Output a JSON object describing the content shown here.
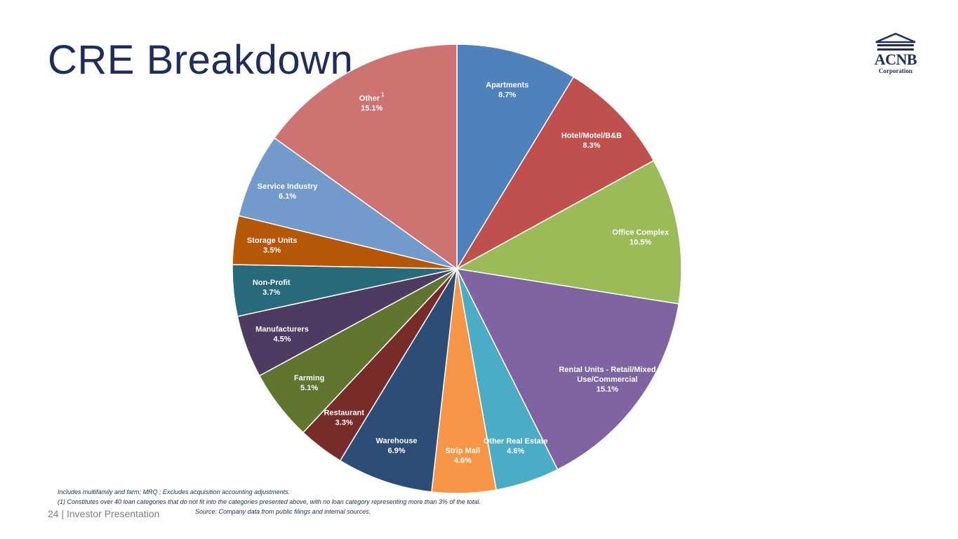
{
  "slide": {
    "title": "CRE Breakdown",
    "footer_page": "24",
    "footer_separator": "|",
    "footer_text": "Investor Presentation",
    "notes": [
      "Includes multifamily and farm; MRQ ; Excludes acquisition accounting adjustments.",
      "(1) Constitutes over 40 loan categories that do not fit into the categories presented above, with no loan category representing more than 3% of the total."
    ],
    "source": "Source: Company data from public filings and internal sources."
  },
  "logo": {
    "main": "ACNB",
    "sub": "Corporation",
    "color": "#1f2d5a",
    "icon": "house-roof-icon"
  },
  "chart_data": {
    "type": "pie",
    "title": "",
    "start": "12 o'clock",
    "direction": "clockwise",
    "value_format": "percent",
    "slices": [
      {
        "label": "Apartments",
        "value": 8.7,
        "display": "8.7%",
        "color": "#4f81bd"
      },
      {
        "label": "Hotel/Motel/B&B",
        "value": 8.3,
        "display": "8.3%",
        "color": "#c0504d"
      },
      {
        "label": "Office Complex",
        "value": 10.5,
        "display": "10.5%",
        "color": "#9bbb59"
      },
      {
        "label": "Rental Units - Retail/Mixed Use/Commercial",
        "label_lines": [
          "Rental Units - Retail/Mixed",
          "Use/Commercial"
        ],
        "value": 15.1,
        "display": "15.1%",
        "color": "#8064a2"
      },
      {
        "label": "Other Real Estate",
        "value": 4.6,
        "display": "4.6%",
        "color": "#4bacc6"
      },
      {
        "label": "Strip Mall",
        "value": 4.6,
        "display": "4.6%",
        "color": "#f79646"
      },
      {
        "label": "Warehouse",
        "value": 6.9,
        "display": "6.9%",
        "color": "#2c4d75"
      },
      {
        "label": "Restaurant",
        "value": 3.3,
        "display": "3.3%",
        "color": "#772c2a"
      },
      {
        "label": "Farming",
        "value": 5.1,
        "display": "5.1%",
        "color": "#5f7530"
      },
      {
        "label": "Manufacturers",
        "value": 4.5,
        "display": "4.5%",
        "color": "#4d3b62"
      },
      {
        "label": "Non-Profit",
        "value": 3.7,
        "display": "3.7%",
        "color": "#276a7c"
      },
      {
        "label": "Storage Units",
        "value": 3.5,
        "display": "3.5%",
        "color": "#b65708"
      },
      {
        "label": "Service Industry",
        "value": 6.1,
        "display": "6.1%",
        "color": "#729aca"
      },
      {
        "label": "Other",
        "footnote": "1",
        "value": 15.1,
        "display": "15.1%",
        "color": "#cd7371"
      }
    ]
  }
}
